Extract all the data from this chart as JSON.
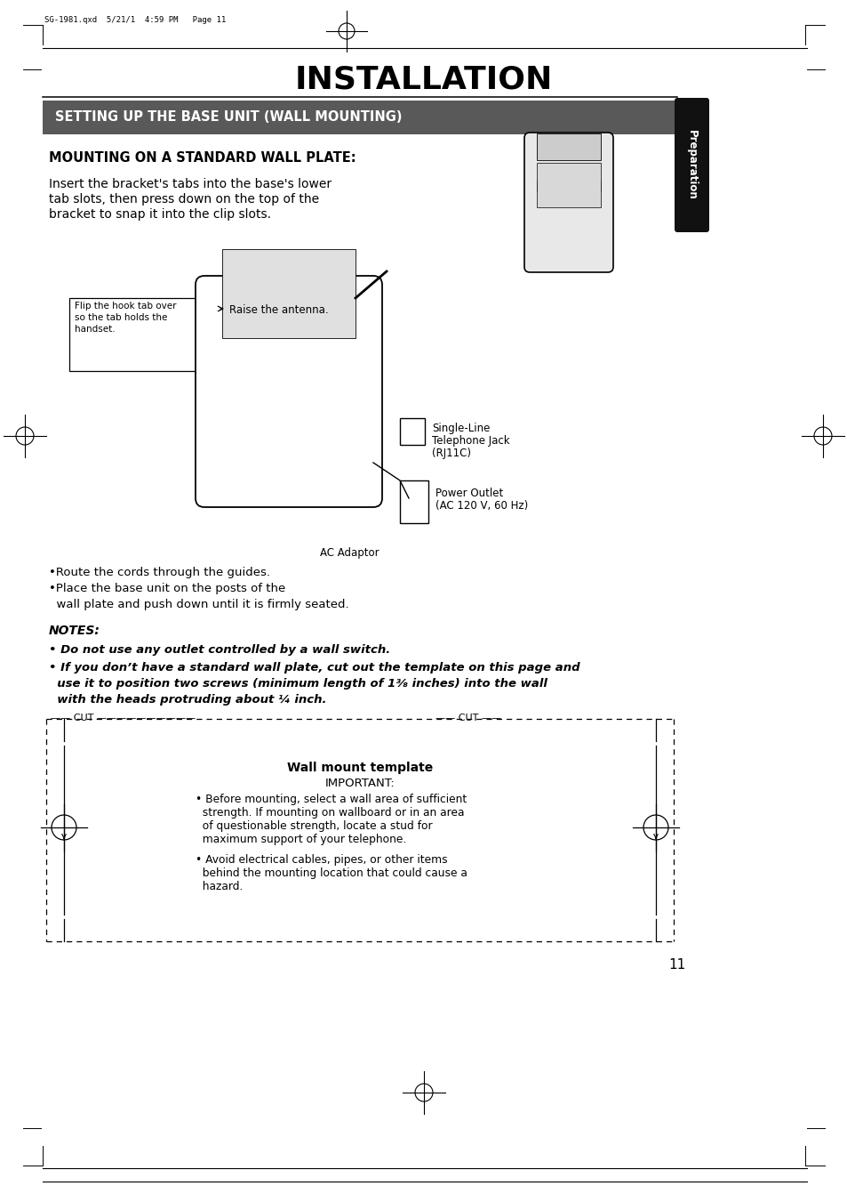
{
  "page_bg": "#ffffff",
  "header_text": "SG-1981.qxd  5/21/1  4:59 PM   Page 11",
  "title": "INSTALLATION",
  "section_header": "SETTING UP THE BASE UNIT (WALL MOUNTING)",
  "section_header_bg": "#595959",
  "section_header_fg": "#ffffff",
  "tab_label": "Preparation",
  "tab_bg": "#111111",
  "tab_fg": "#ffffff",
  "subheading": "MOUNTING ON A STANDARD WALL PLATE:",
  "body_text1_l1": "Insert the bracket's tabs into the base's lower",
  "body_text1_l2": "tab slots, then press down on the top of the",
  "body_text1_l3": "bracket to snap it into the clip slots.",
  "callout1_l1": "Flip the hook tab over",
  "callout1_l2": "so the tab holds the",
  "callout1_l3": "handset.",
  "callout2": "Raise the antenna.",
  "label_single_l1": "Single-Line",
  "label_single_l2": "Telephone Jack",
  "label_single_l3": "(RJ11C)",
  "label_power_l1": "Power Outlet",
  "label_power_l2": "(AC 120 V, 60 Hz)",
  "label_ac": "AC Adaptor",
  "bullet1": "•Route the cords through the guides.",
  "bullet2a": "•Place the base unit on the posts of the",
  "bullet2b": "  wall plate and push down until it is firmly seated.",
  "notes_header": "NOTES:",
  "note1": "• Do not use any outlet controlled by a wall switch.",
  "note2a": "• If you don’t have a standard wall plate, cut out the template on this page and",
  "note2b": "  use it to position two screws (minimum length of 1³⁄₈ inches) into the wall",
  "note2c": "  with the heads protruding about ¼ inch.",
  "template_title": "Wall mount template",
  "template_important": "IMPORTANT:",
  "tmpl_b1a": "• Before mounting, select a wall area of sufficient",
  "tmpl_b1b": "  strength. If mounting on wallboard or in an area",
  "tmpl_b1c": "  of questionable strength, locate a stud for",
  "tmpl_b1d": "  maximum support of your telephone.",
  "tmpl_b2a": "• Avoid electrical cables, pipes, or other items",
  "tmpl_b2b": "  behind the mounting location that could cause a",
  "tmpl_b2c": "  hazard.",
  "cut_label": "CUT",
  "page_number": "11"
}
